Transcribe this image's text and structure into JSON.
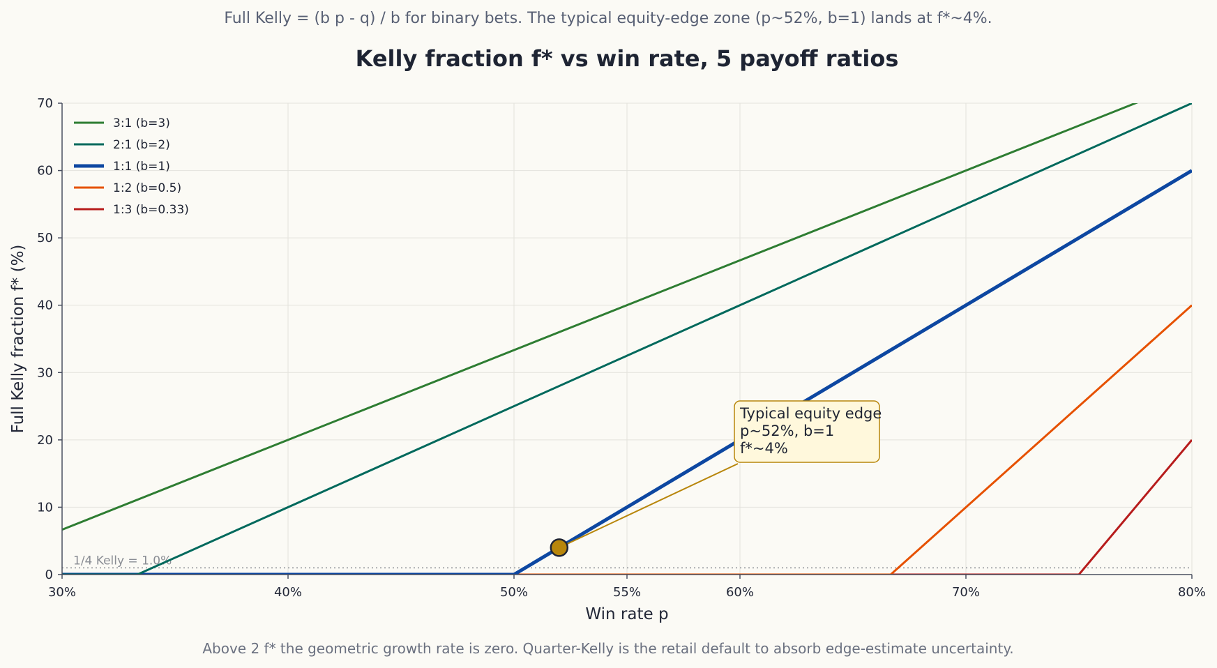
{
  "chart_data": {
    "type": "line",
    "subtitle": "Full Kelly = (b p - q) / b for binary bets. The typical equity-edge zone (p~52%, b=1) lands at f*~4%.",
    "title": "Kelly fraction f* vs win rate, 5 payoff ratios",
    "footnote": "Above 2 f* the geometric growth rate is zero. Quarter-Kelly is the retail default to absorb edge-estimate uncertainty.",
    "xlabel": "Win rate p",
    "ylabel": "Full Kelly fraction f* (%)",
    "xlim": [
      30,
      80
    ],
    "ylim": [
      0,
      70
    ],
    "x_ticks": [
      30,
      40,
      50,
      55,
      60,
      70,
      80
    ],
    "x_tick_labels": [
      "30%",
      "40%",
      "50%",
      "55%",
      "60%",
      "70%",
      "80%"
    ],
    "y_ticks": [
      0,
      10,
      20,
      30,
      40,
      50,
      60,
      70
    ],
    "y_tick_labels": [
      "0",
      "10",
      "20",
      "30",
      "40",
      "50",
      "60",
      "70"
    ],
    "grid": true,
    "legend_position": "top-left",
    "series": [
      {
        "name": "3:1 (b=3)",
        "b": 3,
        "color": "#2e7d32",
        "x": [
          30,
          80
        ],
        "y": [
          6.67,
          73.33
        ]
      },
      {
        "name": "2:1 (b=2)",
        "b": 2,
        "color": "#00695c",
        "x": [
          30,
          33.33,
          80
        ],
        "y": [
          0,
          0,
          70
        ]
      },
      {
        "name": "1:1 (b=1)",
        "b": 1,
        "color": "#0d47a1",
        "x": [
          30,
          50,
          80
        ],
        "y": [
          0,
          0,
          60
        ]
      },
      {
        "name": "1:2 (b=0.5)",
        "b": 0.5,
        "color": "#e65100",
        "x": [
          30,
          66.67,
          80
        ],
        "y": [
          0,
          0,
          40
        ]
      },
      {
        "name": "1:3 (b=0.33)",
        "b": 0.33,
        "color": "#b71c1c",
        "x": [
          30,
          75,
          80
        ],
        "y": [
          0,
          0,
          20
        ]
      }
    ],
    "reference_line": {
      "y": 1.0,
      "label": "1/4 Kelly = 1.0%",
      "color": "#8a8d94"
    },
    "highlight_point": {
      "x": 52,
      "y": 4,
      "color": "#b8860b"
    },
    "annotation": {
      "lines": [
        "Typical equity edge",
        "p~52%, b=1",
        "f*~4%"
      ],
      "border_color": "#b8860b",
      "fill_color": "#fff8dc"
    }
  }
}
